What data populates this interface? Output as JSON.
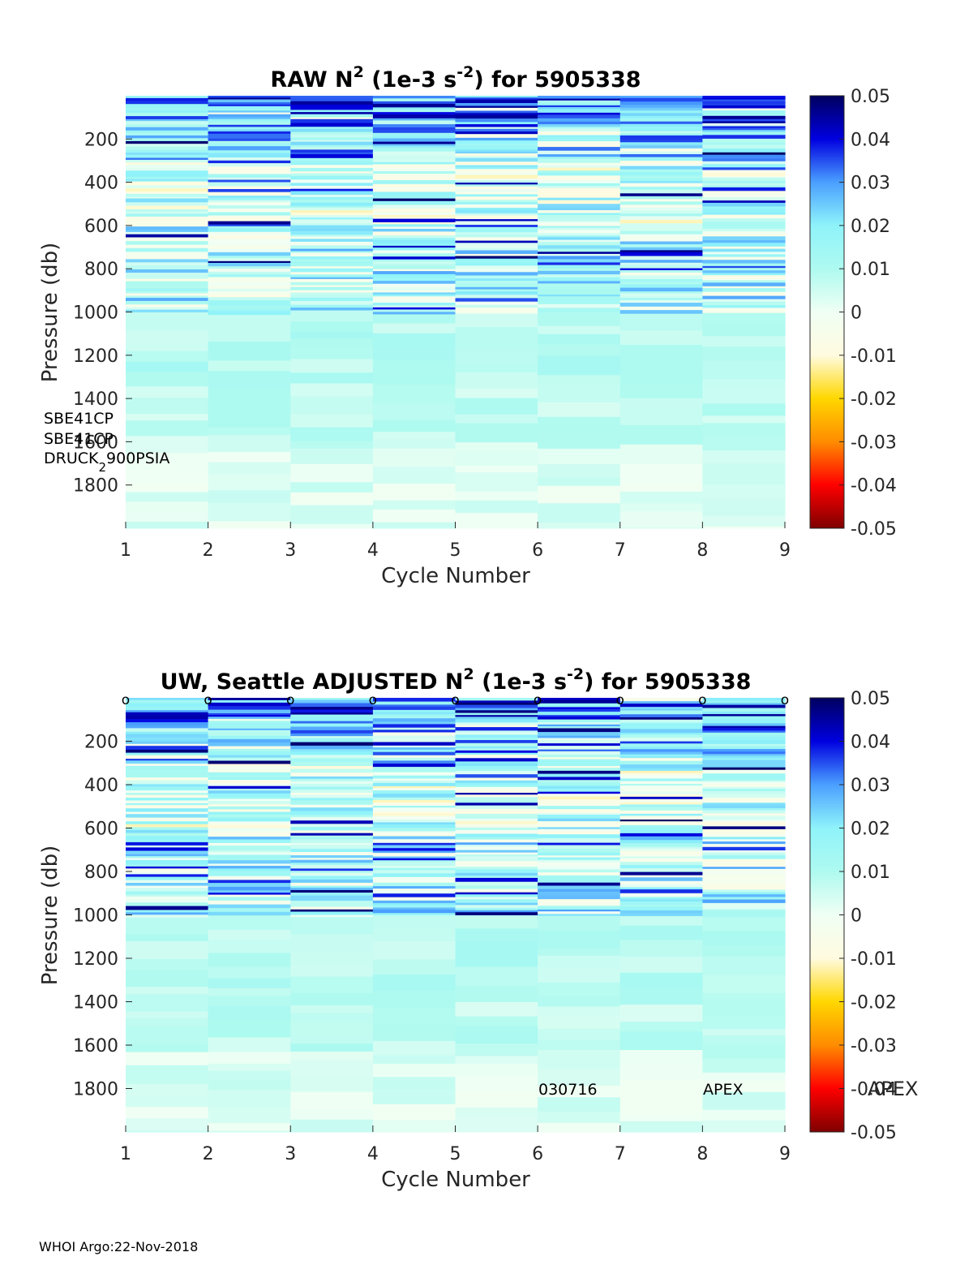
{
  "colormap": [
    "#7f0000",
    "#ff0000",
    "#ff8c00",
    "#ffd700",
    "#fffbe0",
    "#f0fff4",
    "#aefaf0",
    "#8ff3fa",
    "#4a9fff",
    "#0000e0",
    "#00005f"
  ],
  "chart_data": [
    {
      "type": "heatmap",
      "title_parts": [
        "RAW N",
        "2",
        " (1e-3 s",
        "-2",
        ") for 5905338"
      ],
      "xlabel": "Cycle Number",
      "ylabel": "Pressure (db)",
      "xlim": [
        1,
        9
      ],
      "ylim": [
        0,
        2000
      ],
      "xticks": [
        "1",
        "2",
        "3",
        "4",
        "5",
        "6",
        "7",
        "8",
        "9"
      ],
      "yticks": [
        {
          "value": 200,
          "label": "200"
        },
        {
          "value": 400,
          "label": "400"
        },
        {
          "value": 600,
          "label": "600"
        },
        {
          "value": 800,
          "label": "800"
        },
        {
          "value": 1000,
          "label": "1000"
        },
        {
          "value": 1200,
          "label": "1200"
        },
        {
          "value": 1400,
          "label": "1400"
        },
        {
          "value": 1600,
          "label": "1600"
        },
        {
          "value": 1800,
          "label": "1800"
        }
      ],
      "colorbar": {
        "range": [
          -0.05,
          0.05
        ],
        "ticks": [
          "0.05",
          "0.04",
          "0.03",
          "0.02",
          "0.01",
          "0",
          "-0.01",
          "-0.02",
          "-0.03",
          "-0.04",
          "-0.05"
        ]
      },
      "cycles": [
        1,
        2,
        3,
        4,
        5,
        6,
        7,
        8
      ],
      "pressure_bands": [
        {
          "from": 0,
          "to": 100,
          "level": 0.028
        },
        {
          "from": 100,
          "to": 300,
          "level": 0.02
        },
        {
          "from": 300,
          "to": 600,
          "level": 0.006
        },
        {
          "from": 600,
          "to": 1000,
          "level": 0.012
        },
        {
          "from": 1000,
          "to": 1300,
          "level": 0.009
        },
        {
          "from": 1300,
          "to": 1600,
          "level": 0.007
        },
        {
          "from": 1600,
          "to": 2000,
          "level": 0.003
        }
      ],
      "annotations": [
        "SBE41CP",
        "SBE41CP",
        "DRUCK",
        "2",
        "900PSIA"
      ]
    },
    {
      "type": "heatmap",
      "title_parts": [
        "UW, Seattle  ADJUSTED N",
        "2",
        " (1e-3 s",
        "-2",
        ") for 5905338"
      ],
      "xlabel": "Cycle Number",
      "ylabel": "Pressure (db)",
      "xlim": [
        1,
        9
      ],
      "ylim": [
        0,
        2000
      ],
      "xticks": [
        "1",
        "2",
        "3",
        "4",
        "5",
        "6",
        "7",
        "8",
        "9"
      ],
      "yticks": [
        {
          "value": 200,
          "label": "200"
        },
        {
          "value": 400,
          "label": "400"
        },
        {
          "value": 600,
          "label": "600"
        },
        {
          "value": 800,
          "label": "800"
        },
        {
          "value": 1000,
          "label": "1000"
        },
        {
          "value": 1200,
          "label": "1200"
        },
        {
          "value": 1400,
          "label": "1400"
        },
        {
          "value": 1600,
          "label": "1600"
        },
        {
          "value": 1800,
          "label": "1800"
        }
      ],
      "colorbar": {
        "range": [
          -0.05,
          0.05
        ],
        "ticks": [
          "0.05",
          "0.04",
          "0.03",
          "0.02",
          "0.01",
          "0",
          "-0.01",
          "-0.02",
          "-0.03",
          "-0.04",
          "-0.05"
        ]
      },
      "cycles": [
        1,
        2,
        3,
        4,
        5,
        6,
        7,
        8
      ],
      "cycle_markers": [
        "o",
        "o",
        "o",
        "o",
        "o",
        "o",
        "o",
        "o",
        "o"
      ],
      "pressure_bands": [
        {
          "from": 0,
          "to": 100,
          "level": 0.03
        },
        {
          "from": 100,
          "to": 300,
          "level": 0.02
        },
        {
          "from": 300,
          "to": 600,
          "level": 0.006
        },
        {
          "from": 600,
          "to": 1000,
          "level": 0.012
        },
        {
          "from": 1000,
          "to": 1300,
          "level": 0.009
        },
        {
          "from": 1300,
          "to": 1600,
          "level": 0.007
        },
        {
          "from": 1600,
          "to": 2000,
          "level": 0.003
        }
      ],
      "annotations": [
        "030716",
        "APEX",
        "APEX"
      ]
    }
  ],
  "footer": "WHOI Argo:22-Nov-2018"
}
